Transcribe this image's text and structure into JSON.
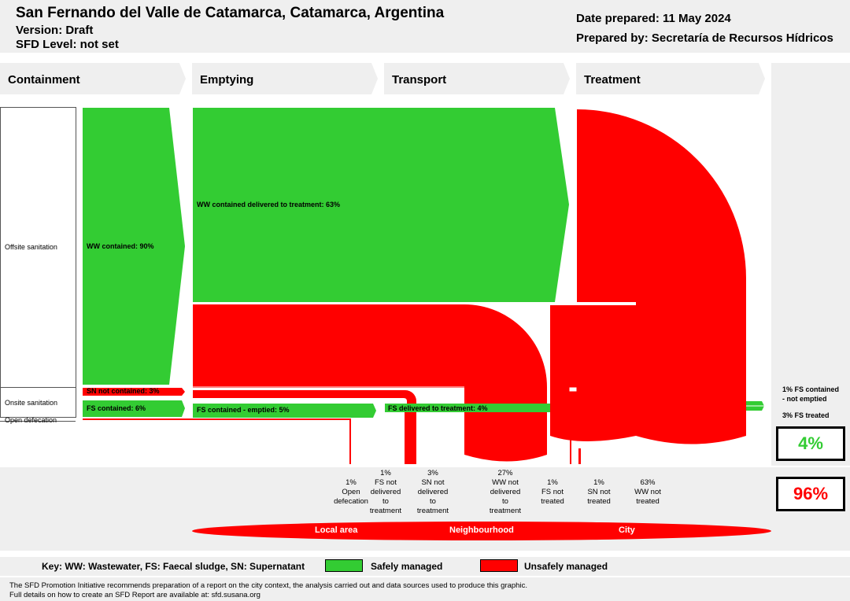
{
  "header": {
    "city": "San Fernando del Valle de Catamarca, Catamarca, Argentina",
    "version": "Version: Draft",
    "sfd_level": "SFD Level: not set",
    "date_prepared": "Date prepared: 11 May 2024",
    "prepared_by": "Prepared by: Secretaría de Recursos Hídricos"
  },
  "stages": [
    "Containment",
    "Emptying",
    "Transport",
    "Treatment"
  ],
  "categories": {
    "offsite": "Offsite sanitation",
    "onsite": "Onsite sanitation",
    "open": "Open defecation"
  },
  "flows": {
    "ww_contained": "WW contained: 90%",
    "ww_delivered": "WW contained delivered to treatment: 63%",
    "sn_not_contained": "SN not contained: 3%",
    "fs_contained": "FS contained: 6%",
    "fs_emptied": "FS contained - emptied: 5%",
    "fs_delivered": "FS delivered to treatment: 4%"
  },
  "right_labels": {
    "fs_not_emptied": [
      "1% FS contained",
      "- not emptied"
    ],
    "fs_treated": "3% FS treated"
  },
  "safe_pct": "4%",
  "unsafe_pct": "96%",
  "outcomes": [
    {
      "lines": [
        "1%",
        "Open",
        "defecation"
      ]
    },
    {
      "lines": [
        "1%",
        "FS not",
        "delivered",
        "to",
        "treatment"
      ]
    },
    {
      "lines": [
        "3%",
        "SN not",
        "delivered",
        "to",
        "treatment"
      ]
    },
    {
      "lines": [
        "27%",
        "WW not",
        "delivered",
        "to",
        "treatment"
      ]
    },
    {
      "lines": [
        "1%",
        "FS not",
        "treated"
      ]
    },
    {
      "lines": [
        "1%",
        "SN not",
        "treated"
      ]
    },
    {
      "lines": [
        "63%",
        "WW not",
        "treated"
      ]
    }
  ],
  "areas": [
    "Local area",
    "Neighbourhood",
    "City"
  ],
  "key": {
    "title": "Key: WW: Wastewater, FS: Faecal sludge, SN: Supernatant",
    "safe": "Safely managed",
    "unsafe": "Unsafely managed"
  },
  "colors": {
    "safe": "#33cc33",
    "unsafe": "#ff0000",
    "panel": "#efefef"
  },
  "footer": [
    "The SFD Promotion Initiative recommends preparation of a report on the city context, the analysis carried out and data sources used to produce this graphic.",
    "Full details on how to create an SFD Report are available at: sfd.susana.org"
  ]
}
